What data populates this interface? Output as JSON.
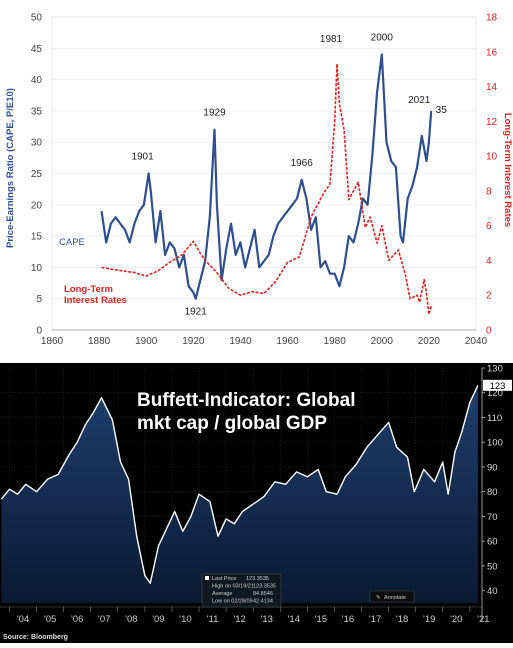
{
  "chart_data": [
    {
      "type": "line",
      "title": "",
      "ylabel": "Price-Earnings Ratio (CAPE, P/E10)",
      "y2label": "Long-Term Interest Rates",
      "xlim": [
        1860,
        2040
      ],
      "ylim": [
        0,
        50
      ],
      "y2lim": [
        0,
        18
      ],
      "x_ticks": [
        "1860",
        "1880",
        "1900",
        "1920",
        "1940",
        "1960",
        "1980",
        "2000",
        "2020",
        "2040"
      ],
      "y_ticks": [
        "0",
        "5",
        "10",
        "15",
        "20",
        "25",
        "30",
        "35",
        "40",
        "45",
        "50"
      ],
      "y2_ticks": [
        "0",
        "2",
        "4",
        "6",
        "8",
        "10",
        "12",
        "14",
        "16",
        "18"
      ],
      "series": [
        {
          "name": "CAPE",
          "color": "#2e4f8f",
          "axis": "left",
          "x": [
            1881,
            1883,
            1885,
            1887,
            1889,
            1891,
            1893,
            1895,
            1897,
            1899,
            1901,
            1902,
            1904,
            1906,
            1908,
            1910,
            1912,
            1914,
            1916,
            1918,
            1920,
            1921,
            1923,
            1925,
            1927,
            1929,
            1930,
            1932,
            1934,
            1936,
            1938,
            1940,
            1942,
            1944,
            1946,
            1948,
            1950,
            1952,
            1954,
            1956,
            1958,
            1960,
            1962,
            1964,
            1966,
            1968,
            1970,
            1972,
            1974,
            1976,
            1978,
            1980,
            1982,
            1984,
            1986,
            1988,
            1990,
            1992,
            1994,
            1996,
            1998,
            2000,
            2002,
            2004,
            2006,
            2008,
            2009,
            2011,
            2013,
            2015,
            2017,
            2019,
            2020,
            2021
          ],
          "values": [
            19,
            14,
            17,
            18,
            17,
            16,
            14,
            17,
            19,
            20,
            25,
            22,
            14,
            19,
            12,
            14,
            13,
            10,
            12,
            7,
            6,
            5,
            8,
            11,
            18,
            32,
            20,
            8,
            13,
            17,
            12,
            14,
            10,
            13,
            16,
            10,
            11,
            12,
            15,
            17,
            18,
            19,
            20,
            21,
            24,
            21,
            16,
            18,
            10,
            11,
            9,
            9,
            7,
            10,
            15,
            14,
            17,
            21,
            20,
            28,
            38,
            44,
            30,
            27,
            26,
            15,
            14,
            21,
            23,
            26,
            31,
            27,
            30,
            35
          ]
        },
        {
          "name": "Long-Term Interest Rates",
          "color": "#e0201f",
          "axis": "right",
          "x": [
            1881,
            1885,
            1890,
            1895,
            1900,
            1905,
            1910,
            1915,
            1920,
            1923,
            1925,
            1930,
            1935,
            1940,
            1945,
            1950,
            1955,
            1960,
            1965,
            1970,
            1975,
            1978,
            1980,
            1981,
            1982,
            1984,
            1986,
            1990,
            1993,
            1995,
            1998,
            2000,
            2003,
            2007,
            2010,
            2012,
            2015,
            2016,
            2018,
            2019,
            2020,
            2021
          ],
          "values": [
            3.6,
            3.5,
            3.4,
            3.3,
            3.1,
            3.4,
            3.9,
            4.3,
            5.1,
            4.4,
            4.0,
            3.3,
            2.4,
            2.0,
            2.2,
            2.1,
            2.8,
            3.9,
            4.2,
            6.5,
            7.8,
            8.4,
            12.0,
            15.3,
            13.0,
            11.5,
            7.5,
            8.5,
            5.9,
            6.5,
            5.0,
            6.0,
            4.0,
            4.6,
            3.2,
            1.8,
            2.0,
            1.6,
            2.9,
            2.1,
            0.9,
            1.4
          ]
        }
      ],
      "annotations": [
        {
          "text": "1901",
          "x": 1901,
          "y": 25
        },
        {
          "text": "1929",
          "x": 1929,
          "y": 32
        },
        {
          "text": "1921",
          "x": 1921,
          "y": 5
        },
        {
          "text": "1966",
          "x": 1966,
          "y": 24
        },
        {
          "text": "1981",
          "x": 1981,
          "y": 45
        },
        {
          "text": "2000",
          "x": 2000,
          "y": 44
        },
        {
          "text": "2021",
          "x": 2021,
          "y": 35
        },
        {
          "text": "35",
          "x": 2021,
          "y": 35
        }
      ],
      "legend_labels": {
        "cape": "CAPE",
        "rates_line1": "Long-Term",
        "rates_line2": "Interest Rates"
      }
    },
    {
      "type": "area",
      "title": "Buffett-Indicator: Global mkt cap / global GDP",
      "title_line1": "Buffett-Indicator: Global",
      "title_line2": "mkt cap / global GDP",
      "ylim": [
        35,
        130
      ],
      "y_ticks": [
        "40",
        "50",
        "60",
        "70",
        "80",
        "90",
        "100",
        "110",
        "120",
        "130"
      ],
      "x_ticks": [
        "'04",
        "'05",
        "'06",
        "'07",
        "'08",
        "'09",
        "'10",
        "'11",
        "'12",
        "'13",
        "'14",
        "'15",
        "'16",
        "'17",
        "'18",
        "'19",
        "'20",
        "'21"
      ],
      "last_value_badge": "123",
      "series": [
        {
          "name": "",
          "color": "#ffffff",
          "x": [
            2003.7,
            2004.0,
            2004.3,
            2004.6,
            2005.0,
            2005.4,
            2005.8,
            2006.2,
            2006.5,
            2006.8,
            2007.1,
            2007.4,
            2007.8,
            2008.1,
            2008.4,
            2008.7,
            2009.0,
            2009.2,
            2009.5,
            2009.8,
            2010.1,
            2010.4,
            2010.7,
            2011.0,
            2011.4,
            2011.7,
            2012.0,
            2012.3,
            2012.6,
            2013.0,
            2013.4,
            2013.8,
            2014.2,
            2014.6,
            2015.0,
            2015.4,
            2015.7,
            2016.1,
            2016.4,
            2016.8,
            2017.2,
            2017.6,
            2018.0,
            2018.3,
            2018.7,
            2018.95,
            2019.3,
            2019.7,
            2020.0,
            2020.2,
            2020.45,
            2020.7,
            2021.0,
            2021.3
          ],
          "values": [
            77,
            81,
            79,
            83,
            80,
            85,
            87,
            95,
            100,
            107,
            112,
            118,
            109,
            92,
            85,
            62,
            46,
            43,
            58,
            65,
            72,
            64,
            70,
            79,
            76,
            62,
            69,
            67,
            72,
            75,
            78,
            84,
            83,
            88,
            86,
            89,
            80,
            79,
            86,
            91,
            98,
            103,
            108,
            98,
            94,
            80,
            89,
            84,
            92,
            79,
            96,
            104,
            116,
            123
          ]
        }
      ],
      "info_box": {
        "title": "Last Price",
        "title_value": "123.3535",
        "rows": [
          {
            "label": "High on 03/19/21",
            "value": "123.3535"
          },
          {
            "label": "Average",
            "value": "84.8546"
          },
          {
            "label": "Low on 02/28/09",
            "value": "42.4134"
          }
        ],
        "annotate": "Annotate"
      },
      "source": "Source: Bloomberg"
    }
  ]
}
